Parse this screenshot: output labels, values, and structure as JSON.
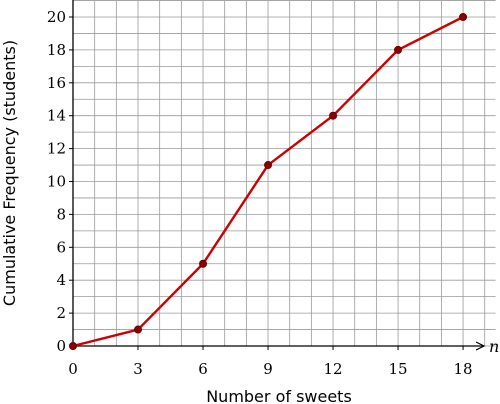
{
  "chart_data": {
    "type": "line",
    "title": "",
    "xlabel": "Number of sweets",
    "ylabel": "Cumulative Frequency (students)",
    "x_axis_variable": "n",
    "x_ticks": [
      0,
      3,
      6,
      9,
      12,
      15,
      18
    ],
    "y_ticks": [
      0,
      2,
      4,
      6,
      8,
      10,
      12,
      14,
      16,
      18,
      20
    ],
    "xlim": [
      0,
      19.8
    ],
    "ylim": [
      0,
      21
    ],
    "grid": true,
    "grid_minor_step_x": 1,
    "grid_minor_step_y": 1,
    "series": [
      {
        "x": [
          0,
          3,
          6,
          9,
          12,
          15,
          18
        ],
        "y": [
          0,
          1,
          5,
          11,
          14,
          18,
          20
        ],
        "color": "#cc0000",
        "marker_color": "#8b0000"
      }
    ]
  }
}
